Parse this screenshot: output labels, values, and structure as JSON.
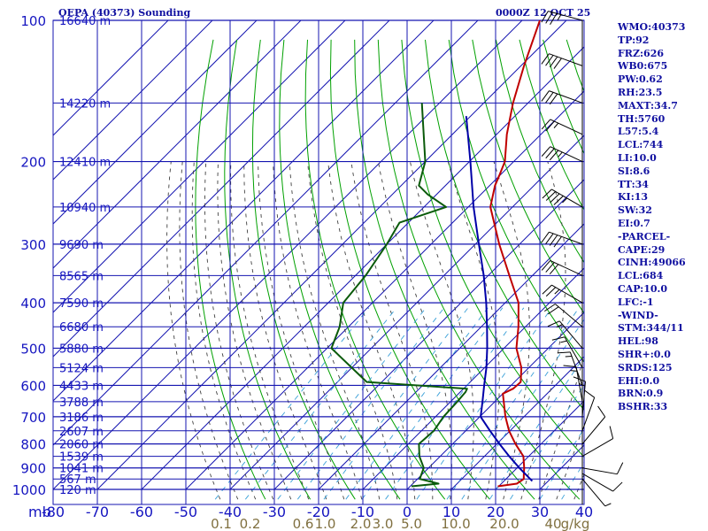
{
  "header": {
    "station": "OEPA (40373) Sounding",
    "time": "0000Z 12 OCT 25"
  },
  "indices": [
    "WMO:40373",
    "TP:92",
    "FRZ:626",
    "WB0:675",
    "PW:0.62",
    "RH:23.5",
    "MAXT:34.7",
    "TH:5760",
    "L57:5.4",
    "LCL:744",
    "LI:10.0",
    "SI:8.6",
    "TT:34",
    "KI:13",
    "SW:32",
    "EI:0.7",
    "-PARCEL-",
    "CAPE:29",
    "CINH:49066",
    "LCL:684",
    "CAP:10.0",
    "LFC:-1",
    "-WIND-",
    "STM:344/11",
    "HEL:98",
    "SHR+:0.0",
    "SRDS:125",
    "EHI:0.0",
    "BRN:0.9",
    "BSHR:33"
  ],
  "chart_data": {
    "type": "line",
    "title": "OEPA (40373) Sounding",
    "xlabel": "",
    "ylabel": "mb",
    "xlim": [
      -80,
      40
    ],
    "ylim": [
      1000,
      100
    ],
    "grid": true,
    "pressure_ticks": [
      "100",
      "200",
      "300",
      "400",
      "500",
      "600",
      "700",
      "800",
      "900",
      "1000"
    ],
    "pressure_tick_values": [
      100,
      200,
      300,
      400,
      500,
      600,
      700,
      800,
      900,
      1000
    ],
    "pressure_axis_label": "mb",
    "temperature_ticks": [
      "-80",
      "-70",
      "-60",
      "-50",
      "-40",
      "-30",
      "-20",
      "-10",
      "0",
      "10",
      "20",
      "30",
      "40"
    ],
    "temperature_tick_values": [
      -80,
      -70,
      -60,
      -50,
      -40,
      -30,
      -20,
      -10,
      0,
      10,
      20,
      30,
      40
    ],
    "height_labels": [
      {
        "p": 100,
        "text": "16640 m"
      },
      {
        "p": 150,
        "text": "14220 m"
      },
      {
        "p": 200,
        "text": "12410 m"
      },
      {
        "p": 250,
        "text": "10940 m"
      },
      {
        "p": 300,
        "text": "9690 m"
      },
      {
        "p": 350,
        "text": "8565 m"
      },
      {
        "p": 400,
        "text": "7590 m"
      },
      {
        "p": 450,
        "text": "6680 m"
      },
      {
        "p": 500,
        "text": "5880 m"
      },
      {
        "p": 550,
        "text": "5124 m"
      },
      {
        "p": 600,
        "text": "4433 m"
      },
      {
        "p": 650,
        "text": "3788 m"
      },
      {
        "p": 700,
        "text": "3186 m"
      },
      {
        "p": 750,
        "text": "2607 m"
      },
      {
        "p": 800,
        "text": "2060 m"
      },
      {
        "p": 850,
        "text": "1539 m"
      },
      {
        "p": 900,
        "text": "1041 m"
      },
      {
        "p": 950,
        "text": "567 m"
      },
      {
        "p": 1000,
        "text": "120 m"
      }
    ],
    "mixing_ratio_labels": [
      {
        "t": -42,
        "text": "0.1"
      },
      {
        "t": -35.5,
        "text": "0.2"
      },
      {
        "t": -23.5,
        "text": "0.6"
      },
      {
        "t": -18.5,
        "text": "1.0"
      },
      {
        "t": -10.5,
        "text": "2.0"
      },
      {
        "t": -5.5,
        "text": "3.0"
      },
      {
        "t": 1,
        "text": "5.0"
      },
      {
        "t": 11,
        "text": "10.0"
      },
      {
        "t": 22,
        "text": "20.0"
      },
      {
        "t": 33,
        "text": "40"
      },
      {
        "t": 38,
        "text": "g/kg"
      }
    ],
    "series": [
      {
        "role": "temperature",
        "color": "#c00000",
        "points": [
          {
            "p": 985,
            "t": 19.8
          },
          {
            "p": 972,
            "t": 23.5
          },
          {
            "p": 950,
            "t": 24.0
          },
          {
            "p": 925,
            "t": 22.8
          },
          {
            "p": 900,
            "t": 21.6
          },
          {
            "p": 850,
            "t": 18.8
          },
          {
            "p": 800,
            "t": 14.2
          },
          {
            "p": 750,
            "t": 9.8
          },
          {
            "p": 700,
            "t": 5.8
          },
          {
            "p": 650,
            "t": 2.0
          },
          {
            "p": 625,
            "t": 0.0
          },
          {
            "p": 610,
            "t": 1.2
          },
          {
            "p": 590,
            "t": 1.4
          },
          {
            "p": 550,
            "t": -1.7
          },
          {
            "p": 500,
            "t": -7.2
          },
          {
            "p": 450,
            "t": -11.6
          },
          {
            "p": 400,
            "t": -17.0
          },
          {
            "p": 350,
            "t": -25.2
          },
          {
            "p": 300,
            "t": -34.6
          },
          {
            "p": 250,
            "t": -45.0
          },
          {
            "p": 225,
            "t": -48.8
          },
          {
            "p": 215,
            "t": -50.0
          },
          {
            "p": 200,
            "t": -52.0
          },
          {
            "p": 175,
            "t": -57.7
          },
          {
            "p": 150,
            "t": -63.4
          },
          {
            "p": 125,
            "t": -69.3
          },
          {
            "p": 100,
            "t": -76.0
          }
        ]
      },
      {
        "role": "dewpoint",
        "color": "#0a5a0a",
        "points": [
          {
            "p": 985,
            "t": 0.3
          },
          {
            "p": 972,
            "t": 5.8
          },
          {
            "p": 950,
            "t": 0.5
          },
          {
            "p": 900,
            "t": -1.1
          },
          {
            "p": 850,
            "t": -4.7
          },
          {
            "p": 800,
            "t": -7.6
          },
          {
            "p": 750,
            "t": -7.2
          },
          {
            "p": 700,
            "t": -8.2
          },
          {
            "p": 650,
            "t": -8.5
          },
          {
            "p": 620,
            "t": -8.8
          },
          {
            "p": 610,
            "t": -9.2
          },
          {
            "p": 590,
            "t": -33.4
          },
          {
            "p": 500,
            "t": -49.0
          },
          {
            "p": 450,
            "t": -52.0
          },
          {
            "p": 400,
            "t": -56.6
          },
          {
            "p": 350,
            "t": -57.7
          },
          {
            "p": 300,
            "t": -60.0
          },
          {
            "p": 270,
            "t": -62.0
          },
          {
            "p": 250,
            "t": -55.0
          },
          {
            "p": 235,
            "t": -62.0
          },
          {
            "p": 225,
            "t": -66.0
          },
          {
            "p": 200,
            "t": -70.0
          },
          {
            "p": 150,
            "t": -84.0
          }
        ]
      },
      {
        "role": "parcel",
        "color": "#0000a8",
        "points": [
          {
            "p": 960,
            "t": 26.4
          },
          {
            "p": 900,
            "t": 20.5
          },
          {
            "p": 850,
            "t": 15.6
          },
          {
            "p": 800,
            "t": 10.6
          },
          {
            "p": 750,
            "t": 5.5
          },
          {
            "p": 700,
            "t": 0.2
          },
          {
            "p": 650,
            "t": -2.8
          },
          {
            "p": 600,
            "t": -6.1
          },
          {
            "p": 550,
            "t": -9.6
          },
          {
            "p": 500,
            "t": -13.8
          },
          {
            "p": 450,
            "t": -18.7
          },
          {
            "p": 400,
            "t": -24.3
          },
          {
            "p": 350,
            "t": -31.0
          },
          {
            "p": 300,
            "t": -39.2
          },
          {
            "p": 250,
            "t": -48.8
          },
          {
            "p": 200,
            "t": -59.8
          },
          {
            "p": 160,
            "t": -71.0
          }
        ]
      }
    ],
    "wind_barbs": [
      {
        "p": 100,
        "dir": 285,
        "spd": 35
      },
      {
        "p": 125,
        "dir": 290,
        "spd": 40
      },
      {
        "p": 150,
        "dir": 290,
        "spd": 30
      },
      {
        "p": 175,
        "dir": 295,
        "spd": 25
      },
      {
        "p": 200,
        "dir": 295,
        "spd": 35
      },
      {
        "p": 250,
        "dir": 300,
        "spd": 45
      },
      {
        "p": 300,
        "dir": 290,
        "spd": 40
      },
      {
        "p": 350,
        "dir": 295,
        "spd": 30
      },
      {
        "p": 400,
        "dir": 300,
        "spd": 25
      },
      {
        "p": 450,
        "dir": 310,
        "spd": 20
      },
      {
        "p": 500,
        "dir": 320,
        "spd": 15
      },
      {
        "p": 550,
        "dir": 330,
        "spd": 15
      },
      {
        "p": 600,
        "dir": 340,
        "spd": 15
      },
      {
        "p": 650,
        "dir": 350,
        "spd": 15
      },
      {
        "p": 700,
        "dir": 5,
        "spd": 15
      },
      {
        "p": 750,
        "dir": 20,
        "spd": 10
      },
      {
        "p": 800,
        "dir": 40,
        "spd": 10
      },
      {
        "p": 850,
        "dir": 60,
        "spd": 10
      },
      {
        "p": 900,
        "dir": 100,
        "spd": 10
      },
      {
        "p": 925,
        "dir": 120,
        "spd": 10
      },
      {
        "p": 950,
        "dir": 140,
        "spd": 5
      }
    ],
    "colors": {
      "grid": "#1515b0",
      "dry_adiabat": "#00a000",
      "moist_adiabat": "#404040",
      "mixing_ratio": "#3aa0d8",
      "text": "#1010a0",
      "mixing_ratio_label": "#807040"
    }
  }
}
